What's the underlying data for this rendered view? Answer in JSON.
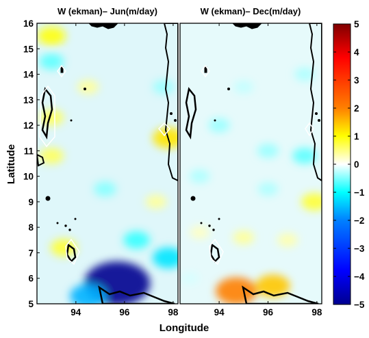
{
  "chart_data": [
    {
      "type": "heatmap",
      "title": "W (ekman)– Jun(m/day)",
      "ylabel": "Latitude",
      "xticks": [
        94,
        96,
        98
      ],
      "yticks": [
        5,
        6,
        7,
        8,
        9,
        10,
        11,
        12,
        13,
        14,
        15,
        16
      ],
      "xlim": [
        92.4,
        98.2
      ],
      "ylim": [
        5,
        16
      ],
      "anomalies": [
        {
          "lon": 95.7,
          "lat": 5.8,
          "value": -5
        },
        {
          "lon": 94.5,
          "lat": 5.3,
          "value": -2
        },
        {
          "lon": 97.8,
          "lat": 11.5,
          "value": 1.5
        },
        {
          "lon": 93.0,
          "lat": 15.5,
          "value": 1.2
        },
        {
          "lon": 93.5,
          "lat": 7.2,
          "value": 1.0
        },
        {
          "lon": 93.0,
          "lat": 12.3,
          "value": 0.8
        },
        {
          "lon": 93.0,
          "lat": 10.8,
          "value": 0.8
        },
        {
          "lon": 94.5,
          "lat": 13.5,
          "value": 0.5
        },
        {
          "lon": 97.3,
          "lat": 9.0,
          "value": 0.5
        },
        {
          "lon": 96.5,
          "lat": 7.5,
          "value": -1
        },
        {
          "lon": 93.0,
          "lat": 14.5,
          "value": -0.8
        },
        {
          "lon": 95.2,
          "lat": 9.5,
          "value": -0.6
        },
        {
          "lon": 97.6,
          "lat": 13.5,
          "value": -0.5
        },
        {
          "lon": 97.8,
          "lat": 6.8,
          "value": -1.5
        }
      ]
    },
    {
      "type": "heatmap",
      "title": "W (ekman)– Dec(m/day)",
      "xticks": [
        94,
        96,
        98
      ],
      "xlim": [
        92.4,
        98.2
      ],
      "ylim": [
        5,
        16
      ],
      "anomalies": [
        {
          "lon": 94.7,
          "lat": 5.5,
          "value": 2.5
        },
        {
          "lon": 96.2,
          "lat": 5.7,
          "value": 1.8
        },
        {
          "lon": 97.9,
          "lat": 9.0,
          "value": 1.0
        },
        {
          "lon": 95.0,
          "lat": 7.6,
          "value": 0.5
        },
        {
          "lon": 96.8,
          "lat": 7.5,
          "value": 0.4
        },
        {
          "lon": 93.2,
          "lat": 7.8,
          "value": 0.3
        },
        {
          "lon": 97.5,
          "lat": 10.8,
          "value": -0.8
        },
        {
          "lon": 94.0,
          "lat": 12.0,
          "value": -0.5
        },
        {
          "lon": 96.0,
          "lat": 11.0,
          "value": -0.5
        },
        {
          "lon": 97.5,
          "lat": 14.0,
          "value": -0.4
        },
        {
          "lon": 95.0,
          "lat": 13.5,
          "value": -0.3
        },
        {
          "lon": 93.2,
          "lat": 10.0,
          "value": -0.4
        },
        {
          "lon": 96.0,
          "lat": 9.5,
          "value": -0.4
        },
        {
          "lon": 92.8,
          "lat": 6.0,
          "value": -0.2
        }
      ]
    }
  ],
  "xlabel": "Longitude",
  "colorbar": {
    "range": [
      -5,
      5
    ],
    "ticks": [
      5,
      4,
      3,
      2,
      1,
      0,
      -1,
      -2,
      -3,
      -4,
      -5
    ],
    "colormap": "jet",
    "colors": [
      "#00008f",
      "#0000ff",
      "#0080ff",
      "#00ffff",
      "#ffffff",
      "#ffff00",
      "#ff8000",
      "#ff0000",
      "#800000"
    ]
  },
  "coastline_color": "#000000"
}
